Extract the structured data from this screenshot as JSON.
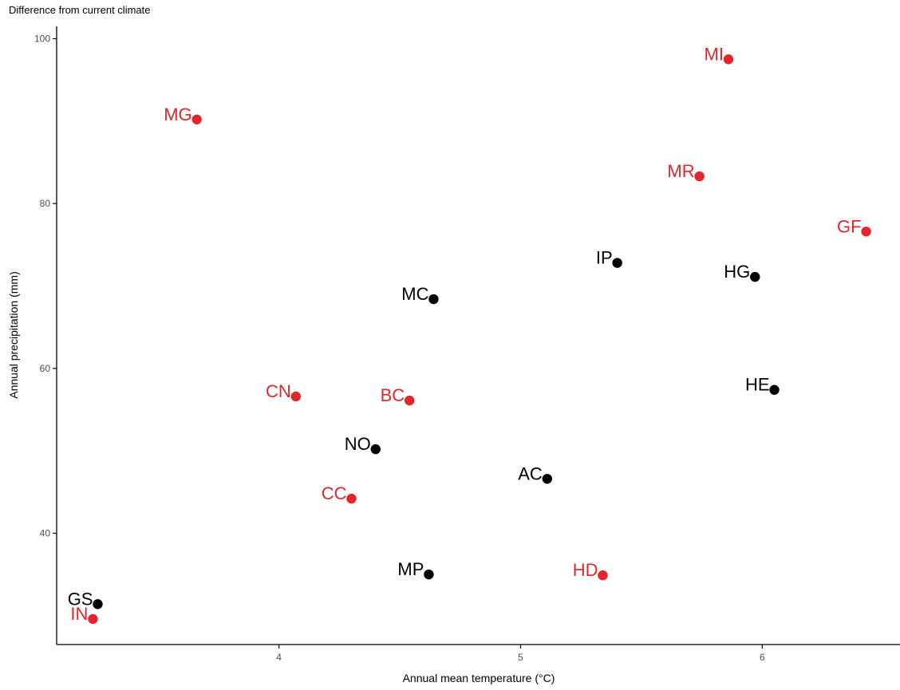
{
  "subtitle": "Difference from current climate",
  "colors": {
    "red": "#e3262b",
    "black": "#000000",
    "axis": "#000000",
    "tick_text": "#4d4d4d"
  },
  "chart_data": {
    "type": "scatter",
    "title": "",
    "subtitle": "Difference from current climate",
    "xlabel": "Annual mean temperature (°C)",
    "ylabel": "Annual precipitation (mm)",
    "xlim": [
      3.08,
      6.57
    ],
    "ylim": [
      26.5,
      101.5
    ],
    "xticks": [
      4,
      5,
      6
    ],
    "yticks": [
      40,
      60,
      80,
      100
    ],
    "grid": false,
    "legend": "none",
    "points": [
      {
        "label": "MI",
        "x": 5.86,
        "y": 97.5,
        "color": "red"
      },
      {
        "label": "MG",
        "x": 3.66,
        "y": 90.2,
        "color": "red"
      },
      {
        "label": "MR",
        "x": 5.74,
        "y": 83.3,
        "color": "red"
      },
      {
        "label": "GF",
        "x": 6.43,
        "y": 76.6,
        "color": "red"
      },
      {
        "label": "IP",
        "x": 5.4,
        "y": 72.8,
        "color": "black"
      },
      {
        "label": "HG",
        "x": 5.97,
        "y": 71.1,
        "color": "black"
      },
      {
        "label": "MC",
        "x": 4.64,
        "y": 68.4,
        "color": "black"
      },
      {
        "label": "HE",
        "x": 6.05,
        "y": 57.4,
        "color": "black"
      },
      {
        "label": "CN",
        "x": 4.07,
        "y": 56.6,
        "color": "red"
      },
      {
        "label": "BC",
        "x": 4.54,
        "y": 56.1,
        "color": "red"
      },
      {
        "label": "NO",
        "x": 4.4,
        "y": 50.2,
        "color": "black"
      },
      {
        "label": "AC",
        "x": 5.11,
        "y": 46.6,
        "color": "black"
      },
      {
        "label": "CC",
        "x": 4.3,
        "y": 44.2,
        "color": "red"
      },
      {
        "label": "MP",
        "x": 4.62,
        "y": 35.0,
        "color": "black"
      },
      {
        "label": "HD",
        "x": 5.34,
        "y": 34.9,
        "color": "red"
      },
      {
        "label": "GS",
        "x": 3.25,
        "y": 31.4,
        "color": "black"
      },
      {
        "label": "IN",
        "x": 3.23,
        "y": 29.6,
        "color": "red"
      }
    ]
  }
}
